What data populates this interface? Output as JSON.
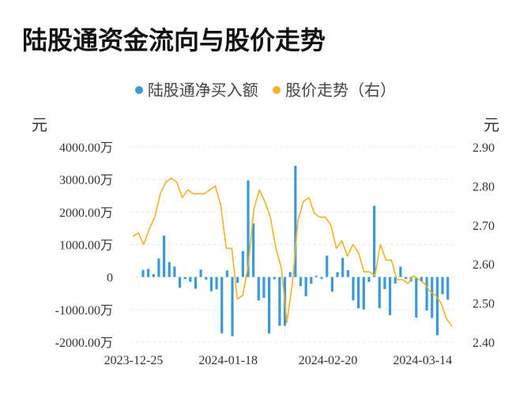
{
  "title": "陆股通资金流向与股价走势",
  "legend": {
    "bar": "陆股通净买入额",
    "line": "股价走势（右）"
  },
  "units": {
    "left": "元",
    "right": "元"
  },
  "colors": {
    "bar": "#3a9ad9",
    "line": "#f0b323",
    "grid": "#e8e8e8"
  },
  "chart_data": {
    "type": "bar+line",
    "y_left": {
      "ylim": [
        -2000,
        4000
      ],
      "ticks": [
        {
          "value": 4000,
          "label": "4000.00万"
        },
        {
          "value": 3000,
          "label": "3000.00万"
        },
        {
          "value": 2000,
          "label": "2000.00万"
        },
        {
          "value": 1000,
          "label": "1000.00万"
        },
        {
          "value": 0,
          "label": "0"
        },
        {
          "value": -1000,
          "label": "-1000.00万"
        },
        {
          "value": -2000,
          "label": "-2000.00万"
        }
      ]
    },
    "y_right": {
      "ylim": [
        2.4,
        2.9
      ],
      "ticks": [
        {
          "value": 2.9,
          "label": "2.90"
        },
        {
          "value": 2.8,
          "label": "2.80"
        },
        {
          "value": 2.7,
          "label": "2.70"
        },
        {
          "value": 2.6,
          "label": "2.60"
        },
        {
          "value": 2.5,
          "label": "2.50"
        },
        {
          "value": 2.4,
          "label": "2.40"
        }
      ]
    },
    "x_labels": [
      {
        "index": 0,
        "label": "2023-12-25"
      },
      {
        "index": 18,
        "label": "2024-01-18"
      },
      {
        "index": 37,
        "label": "2024-02-20"
      },
      {
        "index": 55,
        "label": "2024-03-14"
      }
    ],
    "bars": [
      220,
      250,
      90,
      570,
      1270,
      460,
      320,
      -330,
      -60,
      -150,
      -360,
      230,
      -80,
      -440,
      -380,
      -1730,
      200,
      -1820,
      -180,
      800,
      2970,
      1650,
      -720,
      -640,
      -1740,
      -70,
      -1500,
      -1500,
      150,
      3420,
      -280,
      -590,
      -210,
      40,
      -60,
      660,
      -450,
      150,
      590,
      210,
      -720,
      -960,
      -1000,
      -150,
      2190,
      -960,
      -370,
      -1170,
      -200,
      320,
      -60,
      -140,
      -1250,
      -130,
      -1030,
      -1260,
      -1790,
      -530,
      -700
    ],
    "prices": [
      2.67,
      2.68,
      2.65,
      2.69,
      2.72,
      2.78,
      2.81,
      2.82,
      2.81,
      2.77,
      2.79,
      2.78,
      2.78,
      2.78,
      2.79,
      2.8,
      2.75,
      2.64,
      2.64,
      2.51,
      2.52,
      2.6,
      2.74,
      2.79,
      2.76,
      2.72,
      2.64,
      2.59,
      2.45,
      2.55,
      2.71,
      2.76,
      2.77,
      2.73,
      2.72,
      2.72,
      2.7,
      2.64,
      2.66,
      2.62,
      2.65,
      2.63,
      2.58,
      2.58,
      2.57,
      2.65,
      2.61,
      2.61,
      2.56,
      2.56,
      2.55,
      2.57,
      2.56,
      2.55,
      2.53,
      2.52,
      2.5,
      2.46,
      2.44
    ]
  }
}
